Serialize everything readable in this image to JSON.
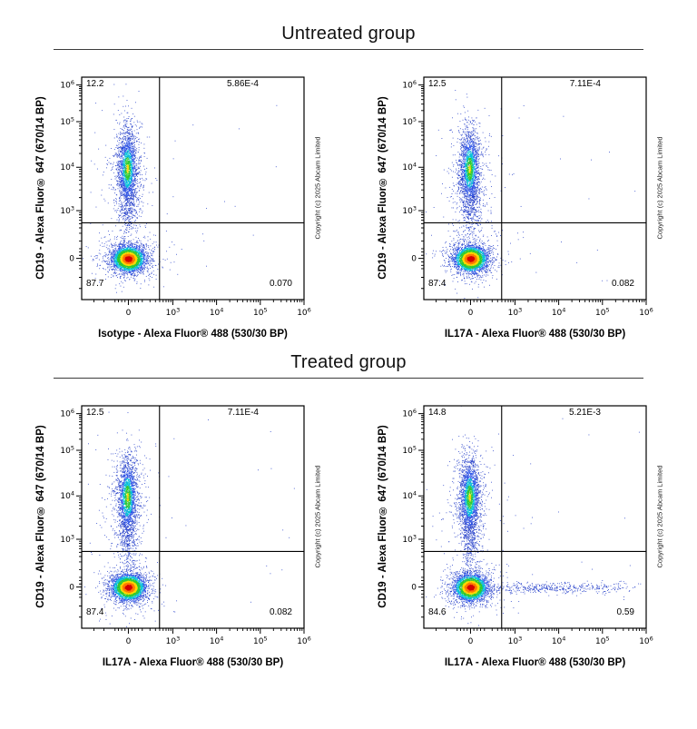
{
  "figure": {
    "groups": [
      {
        "title": "Untreated group"
      },
      {
        "title": "Treated group"
      }
    ]
  },
  "copyright": "Copyright (c) 2025 Abcam Limited",
  "chart_data": {
    "type": "scatter",
    "subtype": "flow-cytometry-pseudocolor-density",
    "grid": false,
    "y_label": "CD19 - Alexa Fluor® 647 (670/14 BP)",
    "x_scale": "biexponential: 0, 10^3, 10^4, 10^5, 10^6",
    "y_scale": "biexponential: 0, 10^3, 10^4, 10^5, 10^6",
    "x_ticks": [
      {
        "label": "0",
        "pos": 0.21
      },
      {
        "label": "10",
        "exp": "3",
        "pos": 0.41
      },
      {
        "label": "10",
        "exp": "4",
        "pos": 0.6066
      },
      {
        "label": "10",
        "exp": "5",
        "pos": 0.8033
      },
      {
        "label": "10",
        "exp": "6",
        "pos": 1.0
      }
    ],
    "y_ticks": [
      {
        "label": "10",
        "exp": "6",
        "pos": 0.035
      },
      {
        "label": "10",
        "exp": "5",
        "pos": 0.2
      },
      {
        "label": "10",
        "exp": "4",
        "pos": 0.405
      },
      {
        "label": "10",
        "exp": "3",
        "pos": 0.6
      },
      {
        "label": "0",
        "pos": 0.815
      }
    ],
    "x_minor_decades": [
      [
        0.2134,
        0.1966
      ],
      [
        0.41,
        0.1966
      ],
      [
        0.6066,
        0.1967
      ],
      [
        0.8033,
        0.1967
      ]
    ],
    "y_minor_decades": [
      [
        0.795,
        0.195
      ],
      [
        0.6,
        0.195
      ],
      [
        0.405,
        0.205
      ],
      [
        0.2,
        0.165
      ]
    ],
    "quadrant_gate": {
      "x_frac": 0.35,
      "y_frac": 0.655
    },
    "density_palette": [
      "#d40000",
      "#ff7a00",
      "#ffd900",
      "#2ecc2e",
      "#00c3d9",
      "#2a52e8",
      "#1f3ac8"
    ],
    "palette_thresholds": [
      0.5,
      0.85,
      1.15,
      1.55,
      1.95,
      2.5
    ],
    "panels": [
      {
        "x_label": "Isotype - Alexa Fluor® 488 (530/30 BP)",
        "quadrants": {
          "ul": "12.2",
          "ur": "5.86E-4",
          "ll": "87.7",
          "lr": "0.070"
        },
        "seed": 101,
        "populations": [
          {
            "cx": 0.22,
            "cy": 0.6,
            "sx": 0.105,
            "sy": 0.24,
            "n": 110,
            "shade": 2.9
          },
          {
            "type": "uniform",
            "x0": 0.38,
            "x1": 0.97,
            "y0": 0.05,
            "y1": 0.62,
            "n": 7,
            "shade": 2.9
          },
          {
            "type": "uniform",
            "x0": 0.38,
            "x1": 0.95,
            "y0": 0.7,
            "y1": 0.93,
            "n": 6,
            "shade": 2.9
          },
          {
            "cx": 0.205,
            "cy": 0.43,
            "sx": 0.042,
            "sy": 0.13,
            "n": 520,
            "shade": 2.4
          },
          {
            "cx": 0.207,
            "cy": 0.595,
            "sx": 0.022,
            "sy": 0.07,
            "n": 260,
            "shade": 2.4
          },
          {
            "cx": 0.205,
            "cy": 0.41,
            "sx": 0.021,
            "sy": 0.082,
            "n": 1750,
            "shade": 0.9
          },
          {
            "cx": 0.21,
            "cy": 0.816,
            "sx": 0.064,
            "sy": 0.05,
            "n": 650,
            "shade": 2.5
          },
          {
            "cx": 0.21,
            "cy": 0.816,
            "sx": 0.034,
            "sy": 0.027,
            "n": 3400,
            "shade": 0
          }
        ]
      },
      {
        "x_label": "IL17A - Alexa Fluor® 488 (530/30 BP)",
        "quadrants": {
          "ul": "12.5",
          "ur": "7.11E-4",
          "ll": "87.4",
          "lr": "0.082"
        },
        "seed": 202,
        "populations": [
          {
            "cx": 0.22,
            "cy": 0.6,
            "sx": 0.105,
            "sy": 0.24,
            "n": 110,
            "shade": 2.9
          },
          {
            "type": "uniform",
            "x0": 0.38,
            "x1": 0.97,
            "y0": 0.05,
            "y1": 0.62,
            "n": 7,
            "shade": 2.9
          },
          {
            "type": "uniform",
            "x0": 0.38,
            "x1": 0.95,
            "y0": 0.7,
            "y1": 0.93,
            "n": 6,
            "shade": 2.9
          },
          {
            "cx": 0.205,
            "cy": 0.43,
            "sx": 0.042,
            "sy": 0.13,
            "n": 520,
            "shade": 2.4
          },
          {
            "cx": 0.207,
            "cy": 0.595,
            "sx": 0.022,
            "sy": 0.07,
            "n": 260,
            "shade": 2.4
          },
          {
            "cx": 0.205,
            "cy": 0.41,
            "sx": 0.021,
            "sy": 0.082,
            "n": 1750,
            "shade": 0.9
          },
          {
            "cx": 0.21,
            "cy": 0.816,
            "sx": 0.064,
            "sy": 0.05,
            "n": 650,
            "shade": 2.5
          },
          {
            "cx": 0.21,
            "cy": 0.816,
            "sx": 0.034,
            "sy": 0.027,
            "n": 3400,
            "shade": 0
          }
        ]
      },
      {
        "x_label": "IL17A - Alexa Fluor® 488 (530/30 BP)",
        "quadrants": {
          "ul": "12.5",
          "ur": "7.11E-4",
          "ll": "87.4",
          "lr": "0.082"
        },
        "seed": 303,
        "populations": [
          {
            "cx": 0.22,
            "cy": 0.6,
            "sx": 0.105,
            "sy": 0.24,
            "n": 110,
            "shade": 2.9
          },
          {
            "type": "uniform",
            "x0": 0.38,
            "x1": 0.97,
            "y0": 0.05,
            "y1": 0.62,
            "n": 7,
            "shade": 2.9
          },
          {
            "type": "uniform",
            "x0": 0.38,
            "x1": 0.95,
            "y0": 0.7,
            "y1": 0.93,
            "n": 6,
            "shade": 2.9
          },
          {
            "cx": 0.205,
            "cy": 0.43,
            "sx": 0.042,
            "sy": 0.13,
            "n": 520,
            "shade": 2.4
          },
          {
            "cx": 0.207,
            "cy": 0.595,
            "sx": 0.022,
            "sy": 0.07,
            "n": 260,
            "shade": 2.4
          },
          {
            "cx": 0.205,
            "cy": 0.41,
            "sx": 0.021,
            "sy": 0.082,
            "n": 1750,
            "shade": 0.9
          },
          {
            "cx": 0.21,
            "cy": 0.816,
            "sx": 0.064,
            "sy": 0.05,
            "n": 650,
            "shade": 2.5
          },
          {
            "cx": 0.21,
            "cy": 0.816,
            "sx": 0.034,
            "sy": 0.027,
            "n": 3400,
            "shade": 0
          }
        ]
      },
      {
        "x_label": "IL17A - Alexa Fluor® 488 (530/30 BP)",
        "quadrants": {
          "ul": "14.8",
          "ur": "5.21E-3",
          "ll": "84.6",
          "lr": "0.59"
        },
        "seed": 404,
        "populations": [
          {
            "cx": 0.22,
            "cy": 0.6,
            "sx": 0.105,
            "sy": 0.24,
            "n": 110,
            "shade": 2.9
          },
          {
            "type": "uniform",
            "x0": 0.38,
            "x1": 0.97,
            "y0": 0.05,
            "y1": 0.62,
            "n": 8,
            "shade": 2.9
          },
          {
            "type": "uniform",
            "x0": 0.38,
            "x1": 0.95,
            "y0": 0.7,
            "y1": 0.93,
            "n": 8,
            "shade": 2.9
          },
          {
            "cx": 0.205,
            "cy": 0.43,
            "sx": 0.042,
            "sy": 0.13,
            "n": 560,
            "shade": 2.4
          },
          {
            "cx": 0.207,
            "cy": 0.595,
            "sx": 0.022,
            "sy": 0.07,
            "n": 280,
            "shade": 2.4
          },
          {
            "cx": 0.205,
            "cy": 0.41,
            "sx": 0.021,
            "sy": 0.082,
            "n": 1850,
            "shade": 0.9
          },
          {
            "cx": 0.52,
            "cy": 0.818,
            "sx": 0.14,
            "sy": 0.012,
            "n": 320,
            "shade": 2.3
          },
          {
            "cx": 0.74,
            "cy": 0.818,
            "sx": 0.13,
            "sy": 0.013,
            "n": 140,
            "shade": 2.6
          },
          {
            "cx": 0.21,
            "cy": 0.816,
            "sx": 0.064,
            "sy": 0.05,
            "n": 650,
            "shade": 2.5
          },
          {
            "cx": 0.21,
            "cy": 0.816,
            "sx": 0.034,
            "sy": 0.027,
            "n": 3300,
            "shade": 0
          }
        ]
      }
    ]
  }
}
